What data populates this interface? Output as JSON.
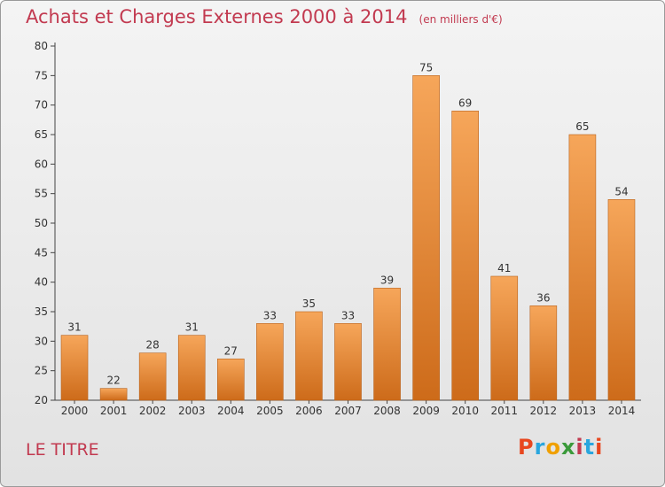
{
  "header": {
    "title": "Achats et Charges Externes 2000 à 2014",
    "unit": "(en milliers d'€)"
  },
  "footer": {
    "commune": "LE TITRE"
  },
  "logo": {
    "text": "Proxiti",
    "colors": [
      "#e8471f",
      "#2aa6de",
      "#f0a000",
      "#3a9a3a",
      "#c23a50",
      "#2aa6de",
      "#e8471f"
    ]
  },
  "colors": {
    "bar_light": "#f6a65a",
    "bar_dark": "#cd6b1a",
    "title": "#c23a50"
  },
  "chart_data": {
    "type": "bar",
    "title": "Achats et Charges Externes 2000 à 2014",
    "subtitle": "(en milliers d'€)",
    "categories": [
      "2000",
      "2001",
      "2002",
      "2003",
      "2004",
      "2005",
      "2006",
      "2007",
      "2008",
      "2009",
      "2010",
      "2011",
      "2012",
      "2013",
      "2014"
    ],
    "values": [
      31,
      22,
      28,
      31,
      27,
      33,
      35,
      33,
      39,
      75,
      69,
      41,
      36,
      65,
      54
    ],
    "ylim": [
      20,
      80
    ],
    "yticks": [
      20,
      25,
      30,
      35,
      40,
      45,
      50,
      55,
      60,
      65,
      70,
      75,
      80
    ],
    "grid": false,
    "legend": "none"
  }
}
